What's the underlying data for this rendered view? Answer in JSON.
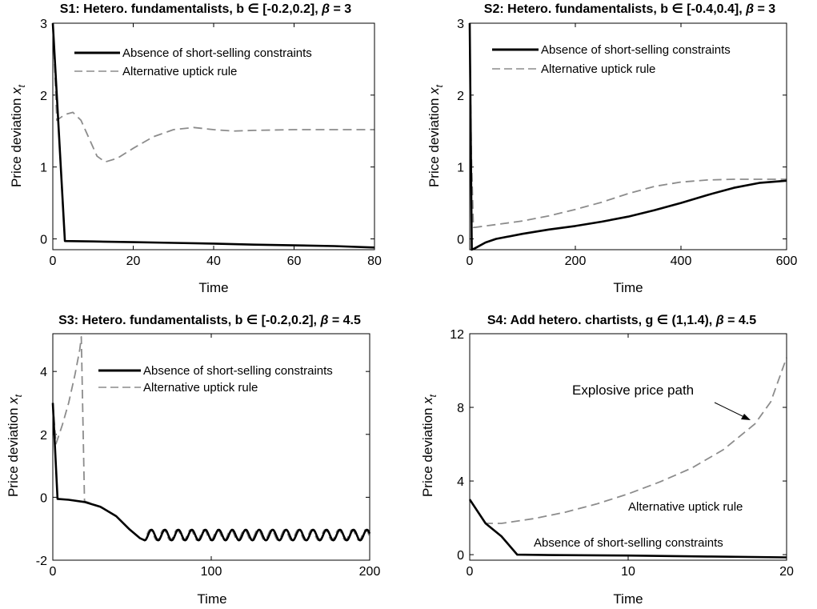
{
  "chart_data": [
    {
      "type": "line",
      "title_parts": [
        "S1: Hetero. fundamentalists, b ",
        "∈",
        " [-0.2,0.2], ",
        "β",
        " = 3"
      ],
      "xlabel": "Time",
      "ylabel_parts": [
        "Price deviation ",
        "x",
        "t"
      ],
      "xlim": [
        0,
        80
      ],
      "ylim": [
        -0.15,
        3
      ],
      "xticks": [
        0,
        20,
        40,
        60,
        80
      ],
      "yticks": [
        0,
        1,
        2,
        3
      ],
      "legend": "top-left",
      "series": [
        {
          "name": "Absence of short-selling constraints",
          "color": "#000000",
          "style": "solid",
          "x": [
            0,
            3,
            10,
            20,
            30,
            40,
            50,
            60,
            70,
            80
          ],
          "y": [
            3.0,
            -0.03,
            -0.035,
            -0.045,
            -0.055,
            -0.065,
            -0.08,
            -0.09,
            -0.1,
            -0.12
          ]
        },
        {
          "name": "Alternative uptick rule",
          "color": "#8c8c8c",
          "style": "dashed",
          "x": [
            0,
            1,
            3,
            5,
            7,
            9,
            11,
            13,
            16,
            20,
            25,
            30,
            35,
            40,
            45,
            50,
            60,
            70,
            80
          ],
          "y": [
            3.0,
            1.65,
            1.73,
            1.76,
            1.65,
            1.4,
            1.15,
            1.07,
            1.12,
            1.26,
            1.42,
            1.52,
            1.55,
            1.52,
            1.5,
            1.51,
            1.52,
            1.52,
            1.52
          ]
        }
      ]
    },
    {
      "type": "line",
      "title_parts": [
        "S2: Hetero. fundamentalists, b ",
        "∈",
        " [-0.4,0.4], ",
        "β",
        " = 3"
      ],
      "xlabel": "Time",
      "ylabel_parts": [
        "Price deviation ",
        "x",
        "t"
      ],
      "xlim": [
        0,
        600
      ],
      "ylim": [
        -0.15,
        3
      ],
      "xticks": [
        0,
        200,
        400,
        600
      ],
      "yticks": [
        0,
        1,
        2,
        3
      ],
      "legend": "top-center",
      "series": [
        {
          "name": "Absence of short-selling constraints",
          "color": "#000000",
          "style": "solid",
          "x": [
            0,
            4,
            10,
            30,
            50,
            100,
            150,
            200,
            250,
            300,
            350,
            400,
            450,
            500,
            550,
            600
          ],
          "y": [
            3.0,
            -0.15,
            -0.13,
            -0.05,
            0.0,
            0.07,
            0.13,
            0.18,
            0.24,
            0.31,
            0.4,
            0.5,
            0.61,
            0.71,
            0.78,
            0.81
          ]
        },
        {
          "name": "Alternative uptick rule",
          "color": "#8c8c8c",
          "style": "dashed",
          "x": [
            0,
            3,
            7,
            10,
            50,
            100,
            150,
            200,
            250,
            300,
            350,
            400,
            450,
            500,
            550,
            600
          ],
          "y": [
            3.0,
            1.2,
            0.16,
            0.16,
            0.2,
            0.25,
            0.32,
            0.41,
            0.51,
            0.63,
            0.73,
            0.79,
            0.82,
            0.83,
            0.83,
            0.83
          ]
        }
      ]
    },
    {
      "type": "line",
      "title_parts": [
        "S3: Hetero. fundamentalists, b ",
        "∈",
        " [-0.2,0.2], ",
        "β",
        " = 4.5"
      ],
      "xlabel": "Time",
      "ylabel_parts": [
        "Price deviation ",
        "x",
        "t"
      ],
      "xlim": [
        0,
        200
      ],
      "ylim": [
        -2,
        5.2
      ],
      "xticks": [
        0,
        100,
        200
      ],
      "yticks": [
        -2,
        0,
        2,
        4
      ],
      "legend": "top-right",
      "oscillation": {
        "start": 58,
        "period": 8.5,
        "center": -1.2,
        "amplitude": 0.17
      },
      "series": [
        {
          "name": "Absence of short-selling constraints",
          "color": "#000000",
          "style": "solid",
          "x": [
            0,
            3,
            10,
            20,
            30,
            40,
            48,
            55,
            58
          ],
          "y": [
            3.0,
            -0.05,
            -0.08,
            -0.15,
            -0.3,
            -0.6,
            -1.0,
            -1.3,
            -1.37
          ]
        },
        {
          "name": "Alternative uptick rule",
          "color": "#8c8c8c",
          "style": "dashed",
          "x": [
            0,
            2,
            6,
            10,
            14,
            17,
            18,
            20,
            30,
            40,
            48,
            55,
            58
          ],
          "y": [
            3.0,
            1.7,
            2.3,
            3.0,
            3.9,
            4.7,
            5.1,
            -0.12,
            -0.3,
            -0.6,
            -1.0,
            -1.3,
            -1.37
          ]
        }
      ]
    },
    {
      "type": "line",
      "title_parts": [
        "S4: Add hetero. chartists, g ",
        "∈",
        " (1,1.4), ",
        "β",
        " = 4.5"
      ],
      "xlabel": "Time",
      "ylabel_parts": [
        "Price deviation ",
        "x",
        "t"
      ],
      "xlim": [
        0,
        20
      ],
      "ylim": [
        -0.3,
        12
      ],
      "xticks": [
        0,
        10,
        20
      ],
      "yticks": [
        0,
        4,
        8,
        12
      ],
      "annotations": [
        "Explosive price path",
        "Alternative uptick rule",
        "Absence of short-selling constraints"
      ],
      "series": [
        {
          "name": "Absence of short-selling constraints",
          "color": "#000000",
          "style": "solid",
          "x": [
            0,
            1,
            2,
            3,
            5,
            10,
            15,
            20
          ],
          "y": [
            3.0,
            1.7,
            1.0,
            0.0,
            -0.02,
            -0.05,
            -0.1,
            -0.15
          ]
        },
        {
          "name": "Alternative uptick rule",
          "color": "#8c8c8c",
          "style": "dashed",
          "x": [
            0,
            1,
            2,
            4,
            6,
            8,
            10,
            12,
            14,
            16,
            18,
            19,
            20
          ],
          "y": [
            3.0,
            1.7,
            1.7,
            1.95,
            2.3,
            2.75,
            3.3,
            3.95,
            4.7,
            5.7,
            7.1,
            8.3,
            10.7
          ]
        }
      ]
    }
  ]
}
